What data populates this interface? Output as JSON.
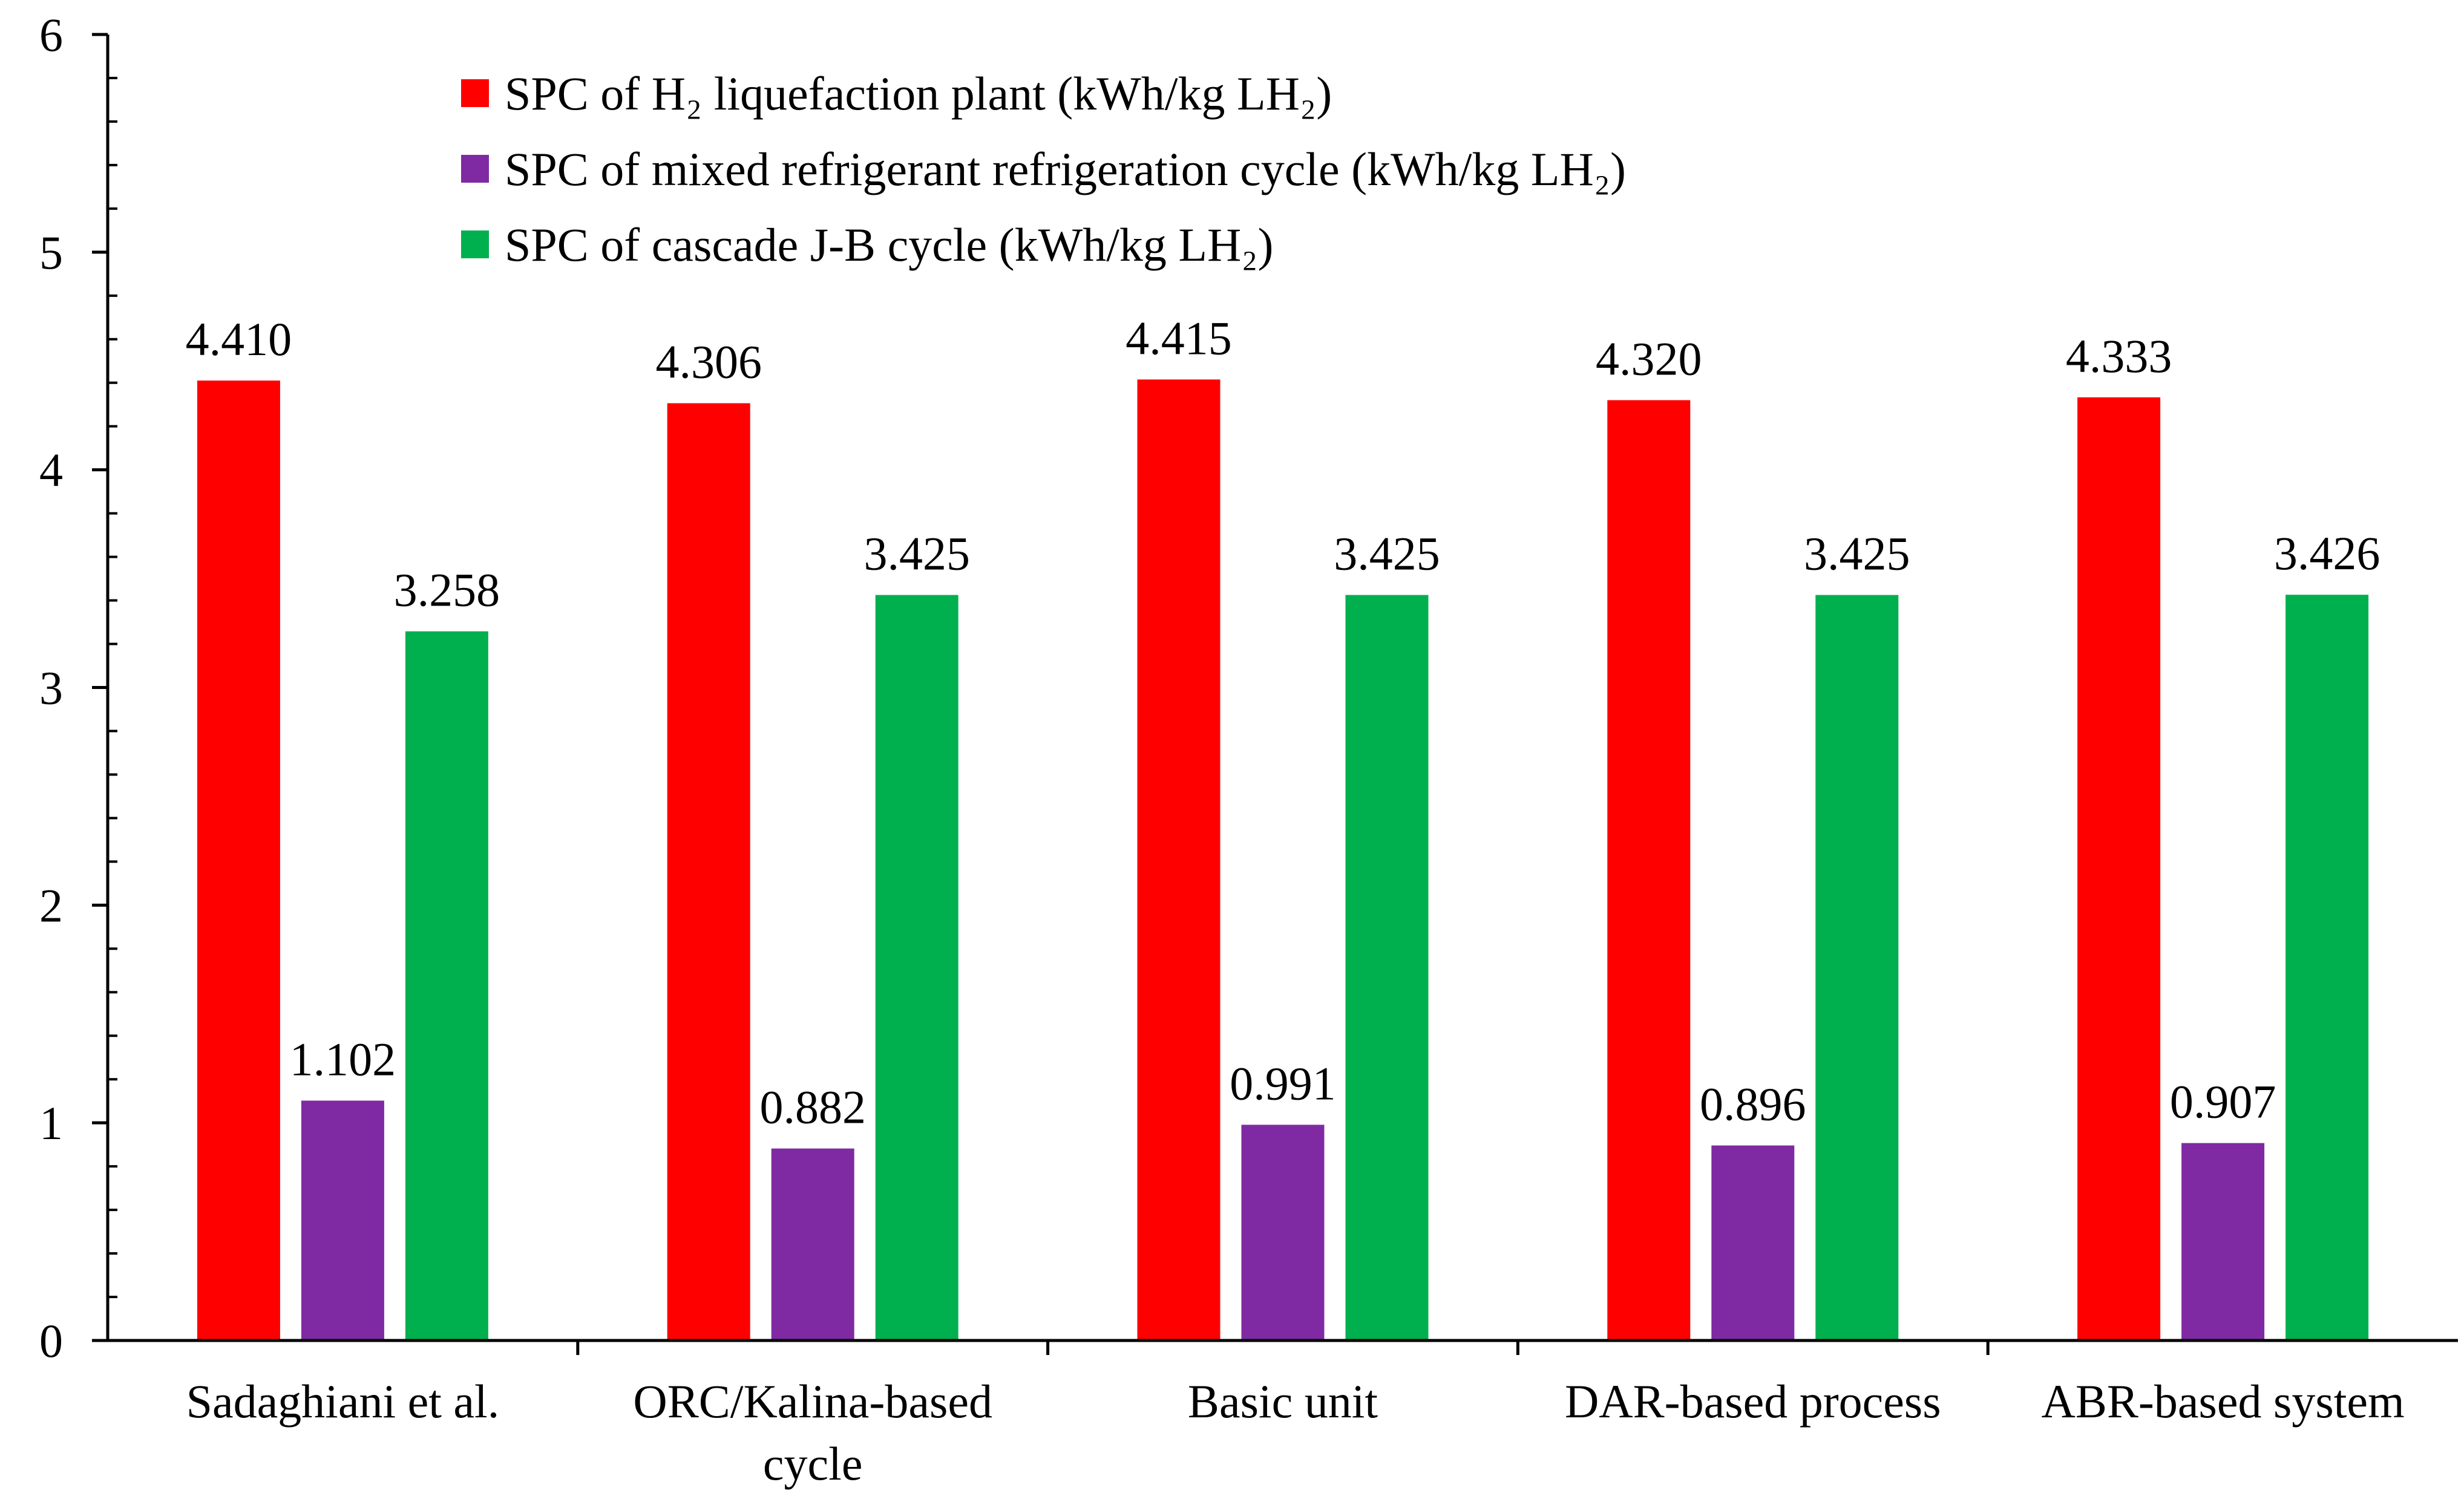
{
  "chart_data": {
    "type": "bar",
    "title": "",
    "xlabel": "",
    "ylabel": "",
    "ylim": [
      0,
      6
    ],
    "yticks": [
      0,
      1,
      2,
      3,
      4,
      5,
      6
    ],
    "ytick_labels": [
      "0",
      "1",
      "2",
      "3",
      "4",
      "5",
      "6"
    ],
    "grid": false,
    "legend_position": "top-center",
    "categories": [
      [
        "Sadaghiani et al."
      ],
      [
        "ORC/Kalina-based",
        "cycle"
      ],
      [
        "Basic unit"
      ],
      [
        "DAR-based process"
      ],
      [
        "ABR-based system"
      ]
    ],
    "series": [
      {
        "name": "SPC of H₂ liquefaction plant (kWh/kg LH₂)",
        "color": "#ff0000",
        "values": [
          4.41,
          4.306,
          4.415,
          4.32,
          4.333
        ],
        "labels": [
          "4.410",
          "4.306",
          "4.415",
          "4.320",
          "4.333"
        ]
      },
      {
        "name": "SPC of mixed refrigerant refrigeration cycle (kWh/kg LH₂)",
        "color": "#7f2aa3",
        "values": [
          1.102,
          0.882,
          0.991,
          0.896,
          0.907
        ],
        "labels": [
          "1.102",
          "0.882",
          "0.991",
          "0.896",
          "0.907"
        ]
      },
      {
        "name": "SPC of cascade J-B cycle (kWh/kg LH₂)",
        "color": "#00b04f",
        "values": [
          3.258,
          3.425,
          3.425,
          3.425,
          3.426
        ],
        "labels": [
          "3.258",
          "3.425",
          "3.425",
          "3.425",
          "3.426"
        ]
      }
    ]
  }
}
